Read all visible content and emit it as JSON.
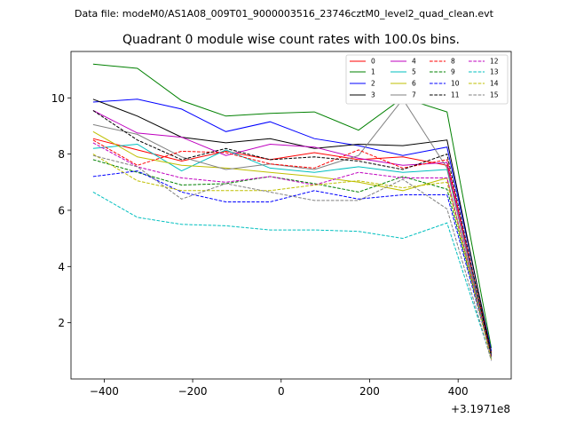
{
  "chart_data": {
    "type": "line",
    "suptitle": "Data file: modeM0/AS1A08_009T01_9000003516_23746cztM0_level2_quad_clean.evt",
    "title": "Quadrant 0 module wise count rates with 100.0s bins.",
    "xlabel": "",
    "ylabel": "",
    "x_offset_label": "+3.1971e8",
    "xlim": [
      -475,
      520
    ],
    "ylim": [
      0.0,
      11.65
    ],
    "x_ticks": [
      -400,
      -200,
      0,
      200,
      400
    ],
    "x_tick_labels": [
      "−400",
      "−200",
      "0",
      "200",
      "400"
    ],
    "y_ticks": [
      2,
      4,
      6,
      8,
      10
    ],
    "y_tick_labels": [
      "2",
      "4",
      "6",
      "8",
      "10"
    ],
    "x": [
      -425,
      -325,
      -225,
      -125,
      -25,
      75,
      175,
      275,
      375,
      475
    ],
    "legend_position": "upper right",
    "series": [
      {
        "name": "0",
        "color": "#ff0000",
        "dash": "solid",
        "values": [
          8.55,
          8.15,
          7.75,
          8.1,
          7.8,
          8.05,
          7.8,
          7.9,
          7.6,
          0.95
        ]
      },
      {
        "name": "1",
        "color": "#008000",
        "dash": "solid",
        "values": [
          11.2,
          11.05,
          9.9,
          9.35,
          9.45,
          9.5,
          8.85,
          10.0,
          9.5,
          1.1
        ]
      },
      {
        "name": "2",
        "color": "#0000ff",
        "dash": "solid",
        "values": [
          9.85,
          9.95,
          9.6,
          8.8,
          9.15,
          8.55,
          8.3,
          7.95,
          8.25,
          1.0
        ]
      },
      {
        "name": "3",
        "color": "#000000",
        "dash": "solid",
        "values": [
          9.95,
          9.35,
          8.6,
          8.4,
          8.55,
          8.2,
          8.35,
          8.3,
          8.5,
          0.9
        ]
      },
      {
        "name": "4",
        "color": "#bf00bf",
        "dash": "solid",
        "values": [
          9.55,
          8.75,
          8.6,
          7.95,
          8.35,
          8.25,
          7.85,
          7.6,
          7.7,
          0.8
        ]
      },
      {
        "name": "5",
        "color": "#00bfbf",
        "dash": "solid",
        "values": [
          8.2,
          8.35,
          7.4,
          8.15,
          7.5,
          7.35,
          7.55,
          7.35,
          7.45,
          0.85
        ]
      },
      {
        "name": "6",
        "color": "#bfbf00",
        "dash": "solid",
        "values": [
          8.8,
          7.9,
          7.6,
          7.5,
          7.35,
          7.2,
          7.0,
          6.7,
          7.15,
          0.75
        ]
      },
      {
        "name": "7",
        "color": "#808080",
        "dash": "solid",
        "values": [
          9.05,
          8.7,
          7.9,
          7.45,
          7.65,
          7.45,
          7.95,
          9.95,
          7.5,
          0.7
        ]
      },
      {
        "name": "8",
        "color": "#ff0000",
        "dash": "dashed",
        "values": [
          8.5,
          7.6,
          8.1,
          8.05,
          7.65,
          7.5,
          8.15,
          7.5,
          7.8,
          0.85
        ]
      },
      {
        "name": "9",
        "color": "#008000",
        "dash": "dashed",
        "values": [
          7.8,
          7.35,
          6.9,
          6.95,
          7.2,
          6.95,
          6.65,
          7.2,
          6.75,
          0.85
        ]
      },
      {
        "name": "10",
        "color": "#0000ff",
        "dash": "dashed",
        "values": [
          7.2,
          7.4,
          6.65,
          6.3,
          6.3,
          6.7,
          6.4,
          6.55,
          6.55,
          0.8
        ]
      },
      {
        "name": "11",
        "color": "#000000",
        "dash": "dashed",
        "values": [
          9.55,
          8.5,
          7.8,
          8.2,
          7.8,
          7.9,
          7.75,
          7.45,
          8.0,
          0.8
        ]
      },
      {
        "name": "12",
        "color": "#bf00bf",
        "dash": "dashed",
        "values": [
          8.4,
          7.55,
          7.15,
          7.0,
          7.2,
          6.9,
          7.35,
          7.15,
          7.15,
          0.75
        ]
      },
      {
        "name": "13",
        "color": "#00bfbf",
        "dash": "dashed",
        "values": [
          6.65,
          5.75,
          5.5,
          5.45,
          5.3,
          5.3,
          5.25,
          5.0,
          5.55,
          0.7
        ]
      },
      {
        "name": "14",
        "color": "#bfbf00",
        "dash": "dashed",
        "values": [
          8.0,
          7.05,
          6.7,
          6.7,
          6.7,
          6.9,
          7.05,
          6.8,
          7.0,
          0.7
        ]
      },
      {
        "name": "15",
        "color": "#808080",
        "dash": "dashed",
        "values": [
          7.95,
          7.55,
          6.4,
          6.95,
          6.65,
          6.35,
          6.35,
          7.1,
          6.05,
          0.65
        ]
      }
    ]
  }
}
